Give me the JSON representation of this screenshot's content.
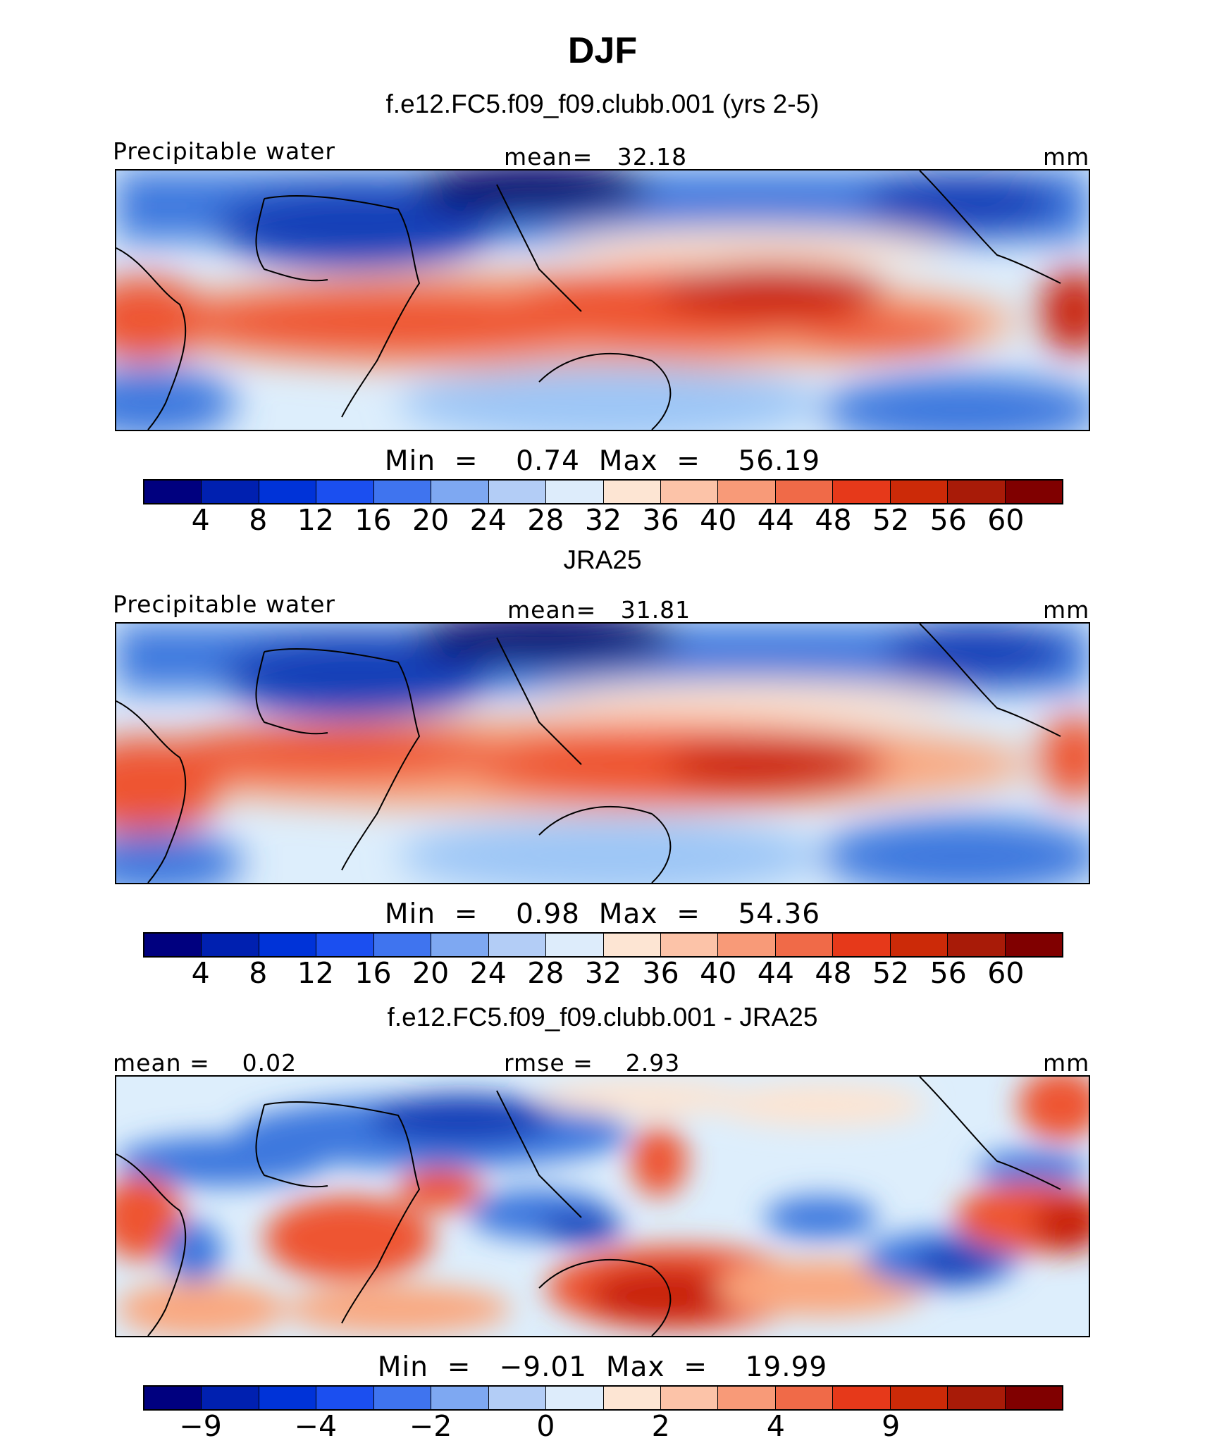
{
  "figure": {
    "title": "DJF"
  },
  "colors": {
    "contour_11": [
      "#08106e",
      "#1340b8",
      "#3c78de",
      "#9dc6f6",
      "#ddeefc",
      "#fde4d1",
      "#f9a880",
      "#ee5530",
      "#c9210d",
      "#8b0a05",
      "#6b0403"
    ],
    "colorbar_16": [
      "#00007f",
      "#0020b0",
      "#0033d8",
      "#1b4ff0",
      "#3f74ef",
      "#7ea8f2",
      "#b3cdf6",
      "#ddecfb",
      "#fde5d3",
      "#fcc3a8",
      "#f89a78",
      "#f06a48",
      "#e6391a",
      "#cc2a08",
      "#a81b08",
      "#800000"
    ],
    "land_outline": "#000000"
  },
  "chart_data": [
    {
      "type": "heatmap",
      "title": "f.e12.FC5.f09_f09.clubb.001 (yrs 2-5)",
      "variable": "Precipitable water",
      "units": "mm",
      "stat1": "mean=   32.18",
      "minmax": "Min  =    0.74  Max  =    56.19",
      "min": 0.74,
      "max": 56.19,
      "mean": 32.18,
      "levels": [
        4,
        8,
        12,
        16,
        20,
        24,
        28,
        32,
        36,
        40,
        44,
        48,
        52,
        56,
        60
      ],
      "tick_labels": [
        "4",
        "8",
        "12",
        "16",
        "20",
        "24",
        "28",
        "32",
        "36",
        "40",
        "44",
        "48",
        "52",
        "56",
        "60"
      ],
      "ylim": [
        -38,
        38
      ]
    },
    {
      "type": "heatmap",
      "title": "JRA25",
      "variable": "Precipitable water",
      "units": "mm",
      "stat1": "mean=   31.81",
      "minmax": "Min  =    0.98  Max  =    54.36",
      "min": 0.98,
      "max": 54.36,
      "mean": 31.81,
      "levels": [
        4,
        8,
        12,
        16,
        20,
        24,
        28,
        32,
        36,
        40,
        44,
        48,
        52,
        56,
        60
      ],
      "tick_labels": [
        "4",
        "8",
        "12",
        "16",
        "20",
        "24",
        "28",
        "32",
        "36",
        "40",
        "44",
        "48",
        "52",
        "56",
        "60"
      ],
      "ylim": [
        -38,
        38
      ]
    },
    {
      "type": "heatmap",
      "title": "f.e12.FC5.f09_f09.clubb.001 - JRA25",
      "variable": "",
      "units": "mm",
      "stat1": "mean =    0.02",
      "stat2": "rmse =    2.93",
      "minmax": "Min  =   −9.01  Max  =    19.99",
      "min": -9.01,
      "max": 19.99,
      "mean": 0.02,
      "rmse": 2.93,
      "tick_labels": [
        "−9",
        "−4",
        "−2",
        "0",
        "2",
        "4",
        "9"
      ],
      "tick_boundaries": [
        1,
        3,
        5,
        7,
        9,
        11,
        13
      ],
      "ylim": [
        -38,
        38
      ]
    }
  ]
}
